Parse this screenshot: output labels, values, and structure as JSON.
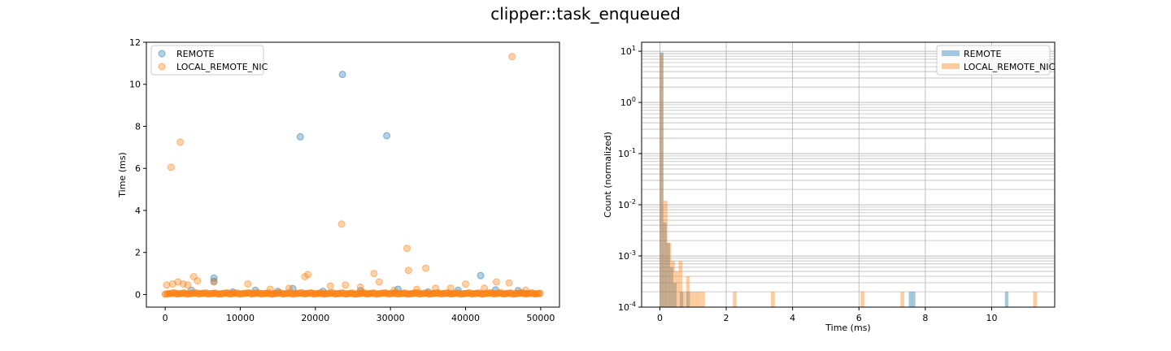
{
  "figure_title": "clipper::task_enqueued",
  "colors": {
    "remote": "#1f77b4",
    "local_remote_nic": "#ff7f0e"
  },
  "chart_data": [
    {
      "type": "scatter",
      "title": "",
      "xlabel": "",
      "ylabel": "Time (ms)",
      "xlim": [
        -2500,
        52500
      ],
      "ylim": [
        -0.6,
        12
      ],
      "xticks": [
        0,
        10000,
        20000,
        30000,
        40000,
        50000
      ],
      "yticks": [
        0,
        2,
        4,
        6,
        8,
        10,
        12
      ],
      "legend": "upper-left",
      "series": [
        {
          "name": "REMOTE",
          "points": [
            [
              6500,
              0.78
            ],
            [
              6500,
              0.62
            ],
            [
              18000,
              7.5
            ],
            [
              23600,
              10.47
            ],
            [
              29500,
              7.55
            ],
            [
              42000,
              0.9
            ],
            [
              3500,
              0.2
            ],
            [
              17000,
              0.28
            ],
            [
              12000,
              0.2
            ],
            [
              21000,
              0.15
            ],
            [
              31000,
              0.25
            ],
            [
              39000,
              0.2
            ],
            [
              44000,
              0.22
            ],
            [
              9000,
              0.12
            ],
            [
              26000,
              0.18
            ],
            [
              15000,
              0.15
            ],
            [
              35000,
              0.12
            ],
            [
              47000,
              0.18
            ]
          ]
        },
        {
          "name": "LOCAL_REMOTE_NIC",
          "points": [
            [
              800,
              6.05
            ],
            [
              2000,
              7.25
            ],
            [
              46200,
              11.32
            ],
            [
              23500,
              3.35
            ],
            [
              32200,
              2.2
            ],
            [
              32400,
              1.15
            ],
            [
              34700,
              1.25
            ],
            [
              27800,
              1.0
            ],
            [
              19000,
              0.95
            ],
            [
              18600,
              0.85
            ],
            [
              3800,
              0.85
            ],
            [
              4300,
              0.65
            ],
            [
              6500,
              0.6
            ],
            [
              11000,
              0.5
            ],
            [
              200,
              0.45
            ],
            [
              1000,
              0.5
            ],
            [
              1700,
              0.6
            ],
            [
              2400,
              0.5
            ],
            [
              3000,
              0.45
            ],
            [
              22000,
              0.4
            ],
            [
              24000,
              0.45
            ],
            [
              28500,
              0.6
            ],
            [
              36000,
              0.3
            ],
            [
              40000,
              0.5
            ],
            [
              42500,
              0.3
            ],
            [
              44100,
              0.6
            ],
            [
              45800,
              0.55
            ],
            [
              38000,
              0.3
            ],
            [
              14000,
              0.25
            ],
            [
              16500,
              0.3
            ],
            [
              26000,
              0.35
            ],
            [
              30500,
              0.2
            ],
            [
              33500,
              0.25
            ],
            [
              48000,
              0.2
            ]
          ]
        }
      ]
    },
    {
      "type": "bar",
      "subtype": "histogram",
      "title": "",
      "xlabel": "Time (ms)",
      "ylabel": "Count (normalized)",
      "yscale": "log",
      "xlim": [
        -0.55,
        11.9
      ],
      "ylim": [
        0.0001,
        15
      ],
      "xticks": [
        0,
        2,
        4,
        6,
        8,
        10
      ],
      "yticks": [
        0.0001,
        0.001,
        0.01,
        0.1,
        1,
        10
      ],
      "ytick_labels": [
        "10^-4",
        "10^-3",
        "10^-2",
        "10^-1",
        "10^0",
        "10^1"
      ],
      "grid": true,
      "legend": "upper-right",
      "series": [
        {
          "name": "REMOTE",
          "bin_width": 0.105,
          "bins": [
            [
              0.0,
              9.5
            ],
            [
              0.1,
              0.0045
            ],
            [
              0.2,
              0.0018
            ],
            [
              0.3,
              0.0006
            ],
            [
              0.4,
              0.0003
            ],
            [
              0.6,
              0.0002
            ],
            [
              0.8,
              0.0002
            ],
            [
              7.5,
              0.0002
            ],
            [
              7.6,
              0.0002
            ],
            [
              10.4,
              0.0002
            ]
          ]
        },
        {
          "name": "LOCAL_REMOTE_NIC",
          "bin_width": 0.113,
          "bins": [
            [
              0.0,
              9.0
            ],
            [
              0.113,
              0.012
            ],
            [
              0.226,
              0.0018
            ],
            [
              0.339,
              0.0008
            ],
            [
              0.452,
              0.0005
            ],
            [
              0.565,
              0.0008
            ],
            [
              0.678,
              0.0002
            ],
            [
              0.791,
              0.0004
            ],
            [
              0.904,
              0.0002
            ],
            [
              1.017,
              0.0002
            ],
            [
              1.13,
              0.0002
            ],
            [
              1.243,
              0.0002
            ],
            [
              2.2,
              0.0002
            ],
            [
              3.35,
              0.0002
            ],
            [
              6.05,
              0.0002
            ],
            [
              7.25,
              0.0002
            ],
            [
              11.25,
              0.0002
            ]
          ]
        }
      ]
    }
  ]
}
